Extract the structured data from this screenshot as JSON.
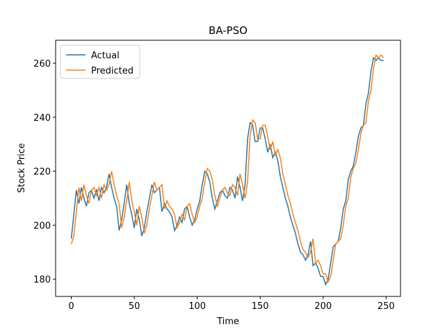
{
  "chart_data": {
    "type": "line",
    "title": "BA-PSO",
    "xlabel": "Time",
    "ylabel": "Stock Price",
    "x": [
      0,
      2,
      4,
      6,
      8,
      10,
      12,
      14,
      16,
      18,
      20,
      22,
      24,
      26,
      28,
      30,
      32,
      34,
      36,
      38,
      40,
      42,
      44,
      46,
      48,
      50,
      52,
      54,
      56,
      58,
      60,
      62,
      64,
      66,
      68,
      70,
      72,
      74,
      76,
      78,
      80,
      82,
      84,
      86,
      88,
      90,
      92,
      94,
      96,
      98,
      100,
      102,
      104,
      106,
      108,
      110,
      112,
      114,
      116,
      118,
      120,
      122,
      124,
      126,
      128,
      130,
      132,
      134,
      136,
      138,
      140,
      142,
      144,
      146,
      148,
      150,
      152,
      154,
      156,
      158,
      160,
      162,
      164,
      166,
      168,
      170,
      172,
      174,
      176,
      178,
      180,
      182,
      184,
      186,
      188,
      190,
      192,
      194,
      196,
      198,
      200,
      202,
      204,
      206,
      208,
      210,
      212,
      214,
      216,
      218,
      220,
      222,
      224,
      226,
      228,
      230,
      232,
      234,
      236,
      238,
      240,
      242,
      244,
      246,
      248
    ],
    "series": [
      {
        "name": "Actual",
        "color": "#1f77b4",
        "values": [
          195,
          204,
          213,
          208,
          214,
          210,
          207,
          212,
          213,
          210,
          213,
          209,
          214,
          212,
          214,
          219,
          214,
          210,
          207,
          198,
          202,
          208,
          215,
          208,
          204,
          199,
          206,
          202,
          196,
          199,
          205,
          210,
          215,
          212,
          213,
          214,
          205,
          208,
          206,
          205,
          203,
          198,
          200,
          203,
          201,
          206,
          207,
          203,
          200,
          202,
          206,
          209,
          215,
          220,
          219,
          216,
          210,
          206,
          209,
          212,
          213,
          211,
          210,
          214,
          213,
          210,
          218,
          214,
          209,
          215,
          232,
          238,
          237,
          231,
          231,
          236,
          236,
          232,
          227,
          230,
          225,
          227,
          224,
          218,
          214,
          210,
          207,
          203,
          200,
          197,
          193,
          190,
          189,
          187,
          189,
          194,
          185,
          186,
          184,
          181,
          181,
          178,
          180,
          186,
          192,
          193,
          194,
          199,
          206,
          209,
          217,
          220,
          222,
          227,
          233,
          236,
          237,
          245,
          249,
          257,
          262,
          261,
          262,
          261,
          261
        ]
      },
      {
        "name": "Predicted",
        "color": "#ff7f0e",
        "values": [
          193,
          196,
          205,
          214,
          209,
          215,
          211,
          208,
          213,
          214,
          211,
          214,
          210,
          215,
          213,
          215,
          220,
          215,
          211,
          208,
          199,
          203,
          209,
          216,
          209,
          205,
          200,
          207,
          203,
          197,
          200,
          206,
          211,
          216,
          213,
          214,
          215,
          206,
          209,
          207,
          206,
          204,
          199,
          201,
          204,
          202,
          207,
          208,
          204,
          201,
          203,
          207,
          210,
          216,
          221,
          220,
          217,
          211,
          207,
          210,
          213,
          214,
          212,
          211,
          215,
          214,
          211,
          219,
          215,
          210,
          216,
          233,
          239,
          238,
          232,
          232,
          237,
          237,
          233,
          228,
          231,
          226,
          228,
          225,
          219,
          215,
          211,
          208,
          204,
          201,
          198,
          194,
          191,
          190,
          188,
          190,
          195,
          186,
          187,
          185,
          182,
          182,
          179,
          181,
          187,
          193,
          194,
          195,
          200,
          207,
          210,
          218,
          221,
          223,
          228,
          234,
          237,
          238,
          246,
          250,
          258,
          263,
          262,
          263,
          262
        ]
      }
    ],
    "xlim": [
      -12.45,
      261.45
    ],
    "xticks": [
      0,
      50,
      100,
      150,
      200,
      250
    ],
    "ylim": [
      173.6,
      268.5
    ],
    "yticks": [
      180,
      200,
      220,
      240,
      260
    ],
    "grid": false,
    "legend": "upper left"
  }
}
